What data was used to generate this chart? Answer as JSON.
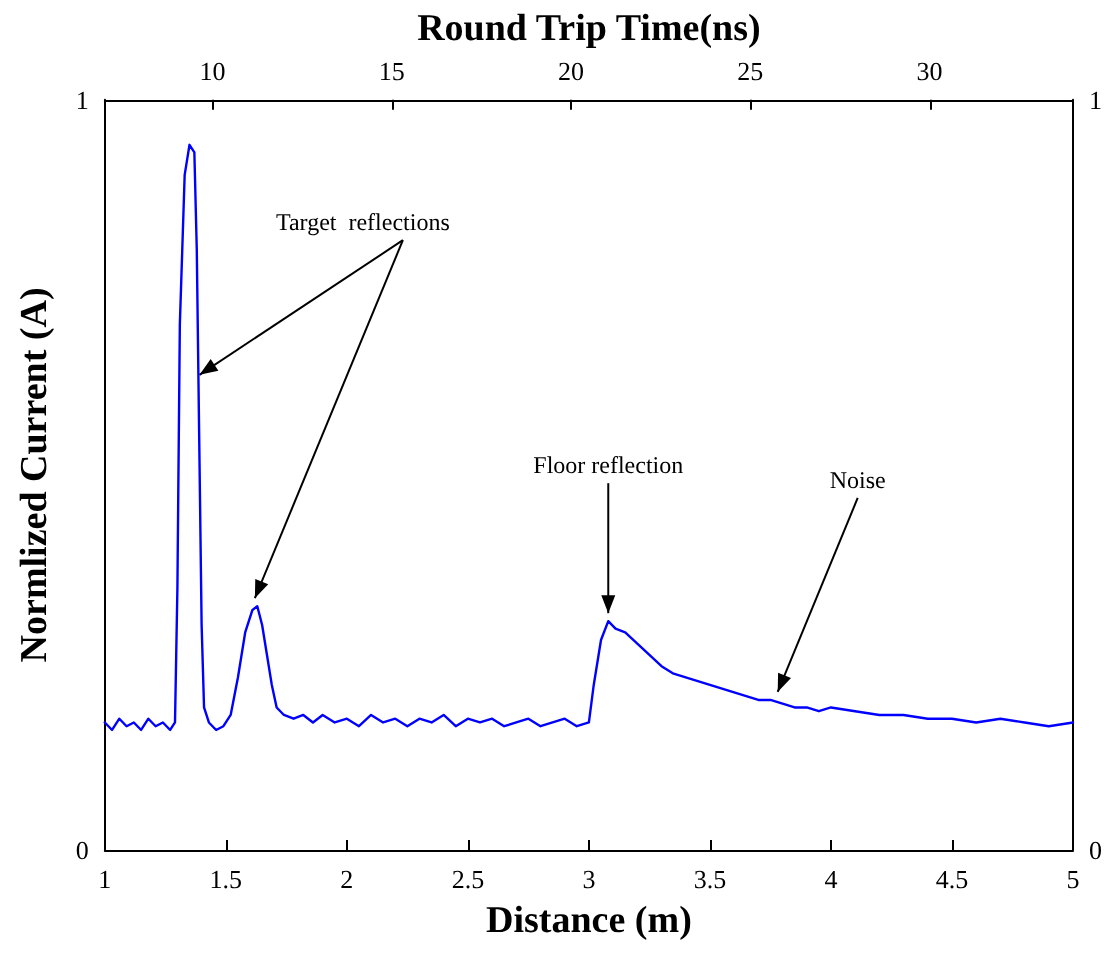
{
  "chart_data": {
    "type": "line",
    "xlabel": "Distance (m)",
    "ylabel": "Normlized Current (A)",
    "x2label": "Round Trip Time(ns)",
    "x": [
      1.0,
      1.03,
      1.06,
      1.09,
      1.12,
      1.15,
      1.18,
      1.21,
      1.24,
      1.27,
      1.29,
      1.3,
      1.31,
      1.33,
      1.35,
      1.37,
      1.38,
      1.39,
      1.4,
      1.41,
      1.43,
      1.46,
      1.49,
      1.52,
      1.55,
      1.58,
      1.61,
      1.63,
      1.65,
      1.67,
      1.69,
      1.71,
      1.74,
      1.78,
      1.82,
      1.86,
      1.9,
      1.95,
      2.0,
      2.05,
      2.1,
      2.15,
      2.2,
      2.25,
      2.3,
      2.35,
      2.4,
      2.45,
      2.5,
      2.55,
      2.6,
      2.65,
      2.7,
      2.75,
      2.8,
      2.85,
      2.9,
      2.95,
      3.0,
      3.02,
      3.05,
      3.08,
      3.11,
      3.15,
      3.2,
      3.25,
      3.3,
      3.35,
      3.4,
      3.45,
      3.5,
      3.55,
      3.6,
      3.65,
      3.7,
      3.75,
      3.8,
      3.85,
      3.9,
      3.95,
      4.0,
      4.1,
      4.2,
      4.3,
      4.4,
      4.5,
      4.6,
      4.7,
      4.8,
      4.9,
      5.0
    ],
    "series": [
      {
        "color": "#0000ff",
        "values": [
          0.17,
          0.16,
          0.175,
          0.165,
          0.17,
          0.16,
          0.175,
          0.165,
          0.17,
          0.16,
          0.17,
          0.35,
          0.7,
          0.9,
          0.94,
          0.93,
          0.8,
          0.55,
          0.3,
          0.19,
          0.17,
          0.16,
          0.165,
          0.18,
          0.23,
          0.29,
          0.32,
          0.325,
          0.3,
          0.26,
          0.22,
          0.19,
          0.18,
          0.175,
          0.18,
          0.17,
          0.18,
          0.17,
          0.175,
          0.165,
          0.18,
          0.17,
          0.175,
          0.165,
          0.175,
          0.17,
          0.18,
          0.165,
          0.175,
          0.17,
          0.175,
          0.165,
          0.17,
          0.175,
          0.165,
          0.17,
          0.175,
          0.165,
          0.17,
          0.22,
          0.28,
          0.305,
          0.295,
          0.29,
          0.275,
          0.26,
          0.245,
          0.235,
          0.23,
          0.225,
          0.22,
          0.215,
          0.21,
          0.205,
          0.2,
          0.2,
          0.195,
          0.19,
          0.19,
          0.185,
          0.19,
          0.185,
          0.18,
          0.18,
          0.175,
          0.175,
          0.17,
          0.175,
          0.17,
          0.165,
          0.17
        ]
      }
    ],
    "xlim": [
      1,
      5
    ],
    "xticks": [
      1,
      1.5,
      2,
      2.5,
      3,
      3.5,
      4,
      4.5,
      5
    ],
    "x2lim": [
      7,
      34
    ],
    "x2ticks": [
      10,
      15,
      20,
      25,
      30
    ],
    "ylim": [
      0,
      1
    ],
    "yticks": [
      0,
      1
    ],
    "y2lim": [
      0,
      1
    ],
    "y2ticks": [
      0,
      1
    ],
    "annotations": [
      {
        "text": "Target  reflections",
        "x": 1.62,
        "y": 0.325
      },
      {
        "text": "Floor reflection",
        "x": 3.08,
        "y": 0.305
      },
      {
        "text": "Noise",
        "x": 3.78,
        "y": 0.2
      }
    ],
    "grid": false,
    "marker": "none",
    "line_style": "solid"
  }
}
